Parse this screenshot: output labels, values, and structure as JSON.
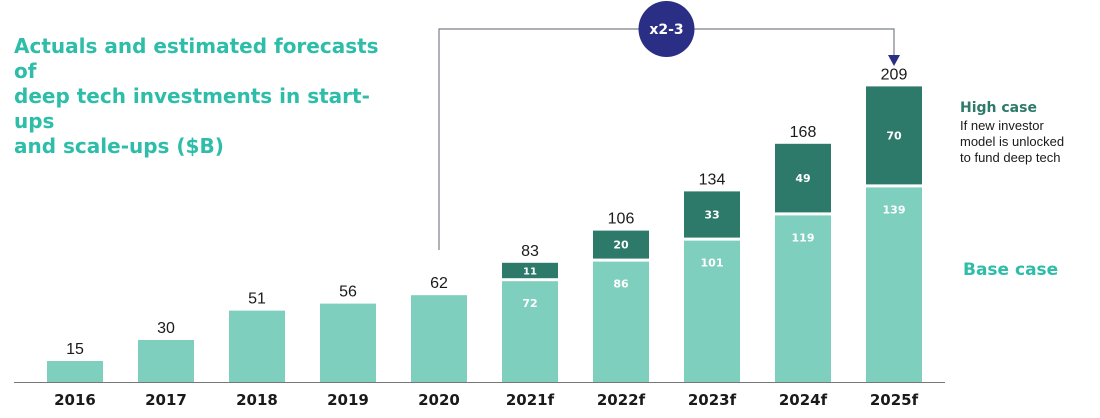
{
  "colors": {
    "base": "#7fcfbf",
    "high": "#2d7a6b",
    "accent": "#2dbda8",
    "badge": "#2a2f85",
    "text": "#1a1a1a"
  },
  "legend": {
    "high_case_title": "High case",
    "high_case_note": "If new investor\nmodel is unlocked\nto fund deep tech",
    "base_case_label": "Base case"
  },
  "chart_data": {
    "type": "bar",
    "stacked": true,
    "title": "Actuals and estimated forecasts of\ndeep tech investments in start-ups\nand scale-ups ($B)",
    "categories": [
      "2016",
      "2017",
      "2018",
      "2019",
      "2020",
      "2021f",
      "2022f",
      "2023f",
      "2024f",
      "2025f"
    ],
    "series": [
      {
        "name": "Base case",
        "values": [
          15,
          30,
          51,
          56,
          62,
          72,
          86,
          101,
          119,
          139
        ]
      },
      {
        "name": "High case",
        "values": [
          null,
          null,
          null,
          null,
          null,
          11,
          20,
          33,
          49,
          70
        ]
      }
    ],
    "totals": [
      15,
      30,
      51,
      56,
      62,
      83,
      106,
      134,
      168,
      209
    ],
    "ylim": [
      0,
      220
    ],
    "grid": false,
    "annotations": [
      {
        "text": "x2-3",
        "from": "2020",
        "to": "2025f"
      }
    ]
  }
}
